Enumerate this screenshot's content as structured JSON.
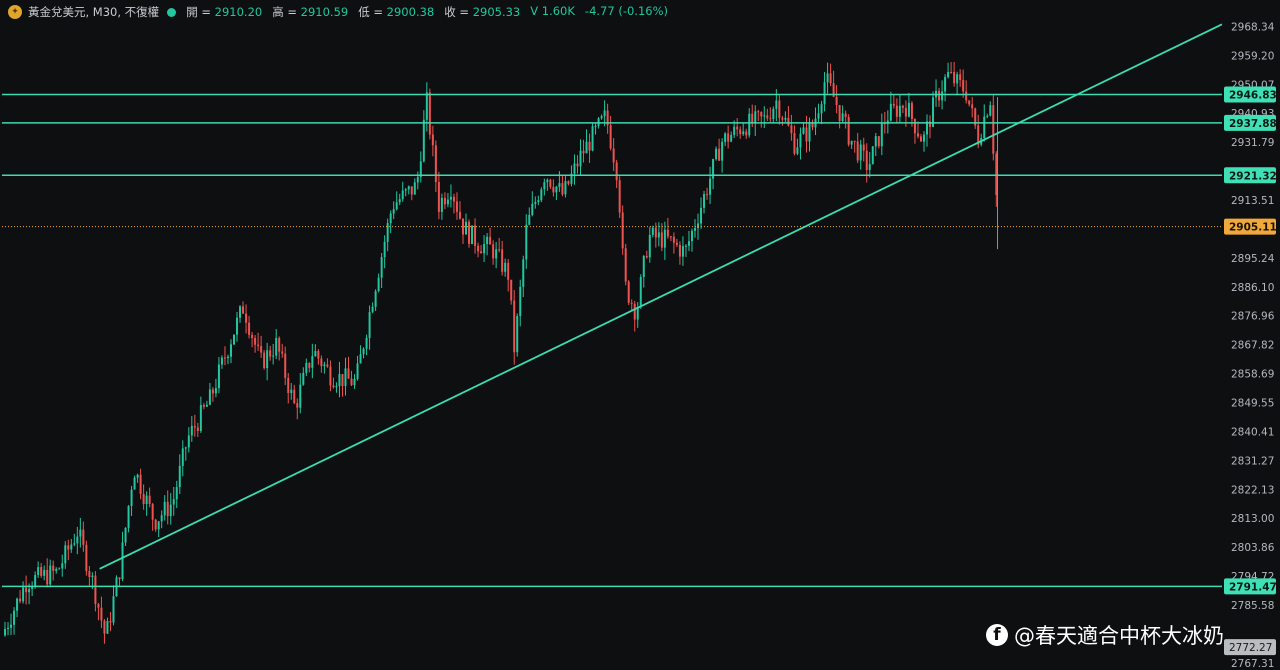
{
  "header": {
    "symbol": "黃金兌美元, M30, 不復權",
    "open_label": "開",
    "open": "2910.20",
    "high_label": "高",
    "high": "2910.59",
    "low_label": "低",
    "low": "2900.38",
    "close_label": "收",
    "close": "2905.33",
    "volume": "V 1.60K",
    "change": "-4.77 (-0.16%)"
  },
  "watermark": "@春天適合中杯大冰奶",
  "colors": {
    "background": "#0e0f11",
    "level_line": "#3ddbb0",
    "up_candle": "#22c7a0",
    "down_candle": "#ef5350",
    "price_marker": "#f2a93b"
  },
  "chart_data": {
    "type": "candlestick",
    "timeframe": "M30",
    "ylim": [
      2766,
      2971
    ],
    "y_ticks": [
      "2968.34",
      "2959.20",
      "2950.07",
      "2940.93",
      "2931.79",
      "2913.51",
      "2895.24",
      "2886.10",
      "2876.96",
      "2867.82",
      "2858.69",
      "2849.55",
      "2840.41",
      "2831.27",
      "2822.13",
      "2813.00",
      "2803.86",
      "2794.72",
      "2785.58",
      "2767.31"
    ],
    "horizontal_levels": [
      {
        "value": 2946.83,
        "label": "2946.83"
      },
      {
        "value": 2937.88,
        "label": "2937.88"
      },
      {
        "value": 2921.32,
        "label": "2921.32"
      },
      {
        "value": 2791.47,
        "label": "2791.47"
      }
    ],
    "current_price": {
      "value": 2905.11,
      "label": "2905.11"
    },
    "low_marker": {
      "value": 2772.27,
      "label": "2772.27"
    },
    "trendline": {
      "start": [
        0.08,
        2797
      ],
      "end": [
        1.0,
        2969
      ]
    },
    "price_path": [
      [
        0.0,
        2776
      ],
      [
        0.02,
        2793
      ],
      [
        0.045,
        2796
      ],
      [
        0.062,
        2809
      ],
      [
        0.075,
        2792
      ],
      [
        0.085,
        2775
      ],
      [
        0.097,
        2798
      ],
      [
        0.108,
        2829
      ],
      [
        0.125,
        2812
      ],
      [
        0.14,
        2818
      ],
      [
        0.152,
        2838
      ],
      [
        0.17,
        2850
      ],
      [
        0.188,
        2870
      ],
      [
        0.198,
        2880
      ],
      [
        0.212,
        2862
      ],
      [
        0.225,
        2868
      ],
      [
        0.24,
        2848
      ],
      [
        0.255,
        2866
      ],
      [
        0.27,
        2858
      ],
      [
        0.29,
        2856
      ],
      [
        0.305,
        2885
      ],
      [
        0.32,
        2912
      ],
      [
        0.34,
        2918
      ],
      [
        0.348,
        2945
      ],
      [
        0.358,
        2912
      ],
      [
        0.368,
        2918
      ],
      [
        0.378,
        2905
      ],
      [
        0.39,
        2900
      ],
      [
        0.402,
        2898
      ],
      [
        0.415,
        2890
      ],
      [
        0.42,
        2866
      ],
      [
        0.43,
        2905
      ],
      [
        0.445,
        2922
      ],
      [
        0.46,
        2915
      ],
      [
        0.475,
        2928
      ],
      [
        0.495,
        2940
      ],
      [
        0.505,
        2921
      ],
      [
        0.51,
        2887
      ],
      [
        0.52,
        2878
      ],
      [
        0.53,
        2902
      ],
      [
        0.545,
        2901
      ],
      [
        0.56,
        2897
      ],
      [
        0.575,
        2914
      ],
      [
        0.59,
        2932
      ],
      [
        0.608,
        2937
      ],
      [
        0.625,
        2939
      ],
      [
        0.635,
        2945
      ],
      [
        0.65,
        2931
      ],
      [
        0.665,
        2937
      ],
      [
        0.675,
        2952
      ],
      [
        0.685,
        2943
      ],
      [
        0.695,
        2933
      ],
      [
        0.71,
        2924
      ],
      [
        0.725,
        2940
      ],
      [
        0.74,
        2944
      ],
      [
        0.755,
        2932
      ],
      [
        0.765,
        2945
      ],
      [
        0.775,
        2953
      ],
      [
        0.79,
        2948
      ],
      [
        0.8,
        2933
      ],
      [
        0.81,
        2946
      ],
      [
        0.815,
        2915
      ]
    ]
  }
}
